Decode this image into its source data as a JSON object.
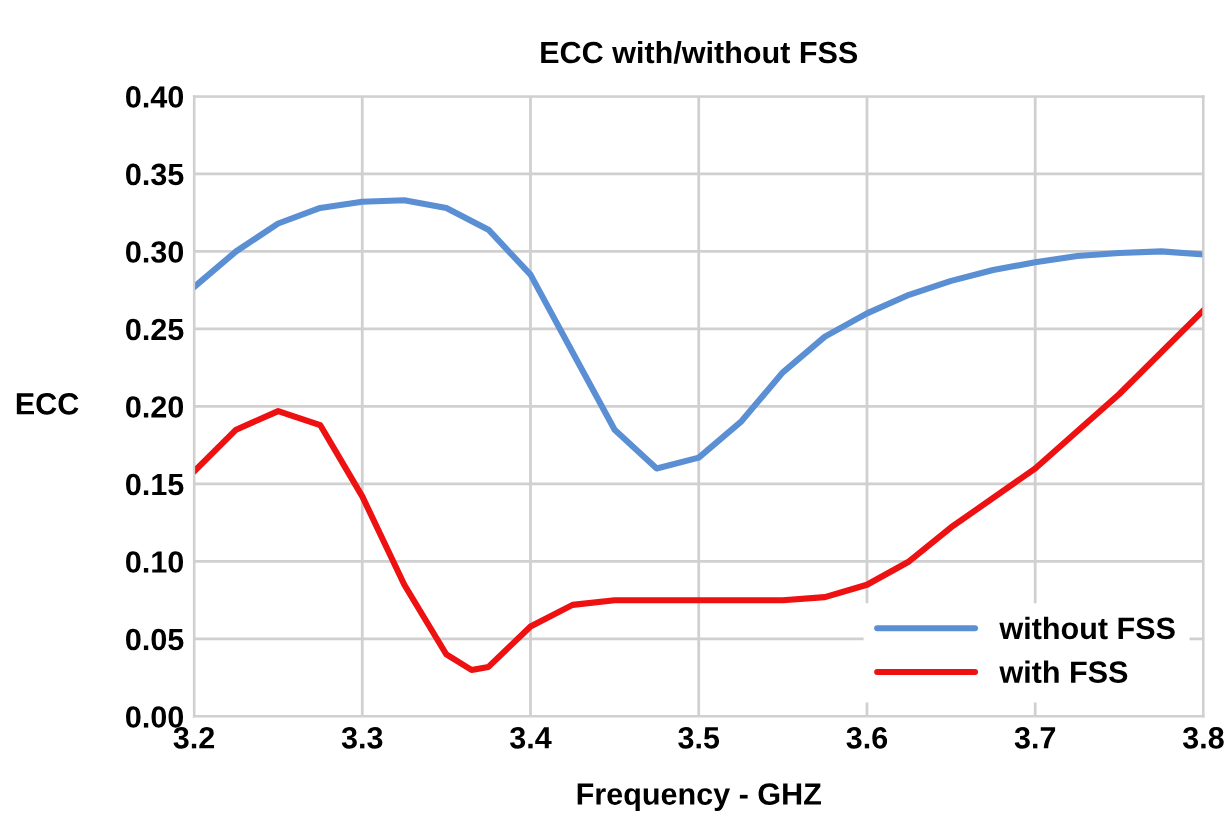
{
  "chart_data": {
    "type": "line",
    "title": "ECC with/without FSS",
    "xlabel": "Frequency - GHZ",
    "ylabel": "ECC",
    "xlim": [
      3.2,
      3.8
    ],
    "xticks": [
      3.2,
      3.3,
      3.4,
      3.5,
      3.6,
      3.7,
      3.8
    ],
    "ylim": [
      0,
      0.4
    ],
    "yticks": [
      {
        "value": 0,
        "label": "0.00"
      },
      {
        "value": 0.05,
        "label": "0.05"
      },
      {
        "value": 0.1,
        "label": "0.10"
      },
      {
        "value": 0.15,
        "label": "0.15"
      },
      {
        "value": 0.2,
        "label": "0.20"
      },
      {
        "value": 0.25,
        "label": "0.25"
      },
      {
        "value": 0.3,
        "label": "0.30"
      },
      {
        "value": 0.35,
        "label": "0.35"
      },
      {
        "value": 0.4,
        "label": "0.40"
      }
    ],
    "grid": true,
    "legend": "bottom right",
    "marker": "none",
    "line_style": "solid",
    "series": [
      {
        "name": "without FSS",
        "color": "#5b8fd4",
        "x": [
          3.2,
          3.225,
          3.25,
          3.275,
          3.3,
          3.325,
          3.35,
          3.375,
          3.4,
          3.425,
          3.45,
          3.475,
          3.5,
          3.525,
          3.55,
          3.575,
          3.6,
          3.625,
          3.65,
          3.675,
          3.7,
          3.725,
          3.75,
          3.775,
          3.8
        ],
        "values": [
          0.277,
          0.3,
          0.318,
          0.328,
          0.332,
          0.333,
          0.328,
          0.314,
          0.285,
          0.235,
          0.185,
          0.16,
          0.167,
          0.19,
          0.222,
          0.245,
          0.26,
          0.272,
          0.281,
          0.288,
          0.293,
          0.297,
          0.299,
          0.3,
          0.298
        ]
      },
      {
        "name": "with FSS",
        "color": "#ee1111",
        "x": [
          3.2,
          3.225,
          3.25,
          3.275,
          3.3,
          3.325,
          3.35,
          3.365,
          3.375,
          3.4,
          3.425,
          3.45,
          3.5,
          3.55,
          3.575,
          3.6,
          3.625,
          3.65,
          3.7,
          3.75,
          3.8
        ],
        "values": [
          0.158,
          0.185,
          0.197,
          0.188,
          0.142,
          0.085,
          0.04,
          0.03,
          0.032,
          0.058,
          0.072,
          0.075,
          0.075,
          0.075,
          0.077,
          0.085,
          0.1,
          0.122,
          0.16,
          0.208,
          0.262
        ]
      }
    ]
  }
}
